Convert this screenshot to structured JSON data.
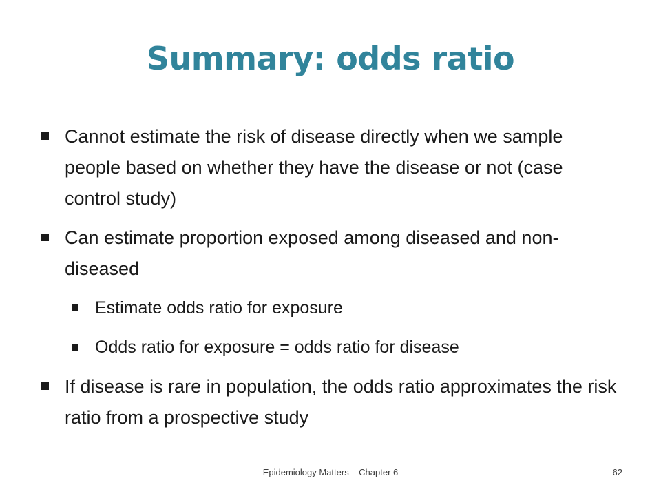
{
  "slide": {
    "title": "Summary: odds ratio",
    "bullets": [
      {
        "level": 1,
        "text": "Cannot estimate the risk of disease directly when we sample people based on whether they have the disease or not (case control study)"
      },
      {
        "level": 1,
        "text": "Can estimate proportion exposed among diseased and non-diseased"
      },
      {
        "level": 2,
        "text": "Estimate odds ratio for exposure"
      },
      {
        "level": 2,
        "text": "Odds ratio for exposure = odds ratio for disease"
      },
      {
        "level": 1,
        "text": "If disease is rare in population, the odds ratio approximates the risk ratio from a prospective study"
      }
    ],
    "bullet_icon": "square-bullet-icon",
    "title_color": "#31849b"
  },
  "footer": {
    "text": "Epidemiology Matters – Chapter 6",
    "page_number": "62"
  }
}
